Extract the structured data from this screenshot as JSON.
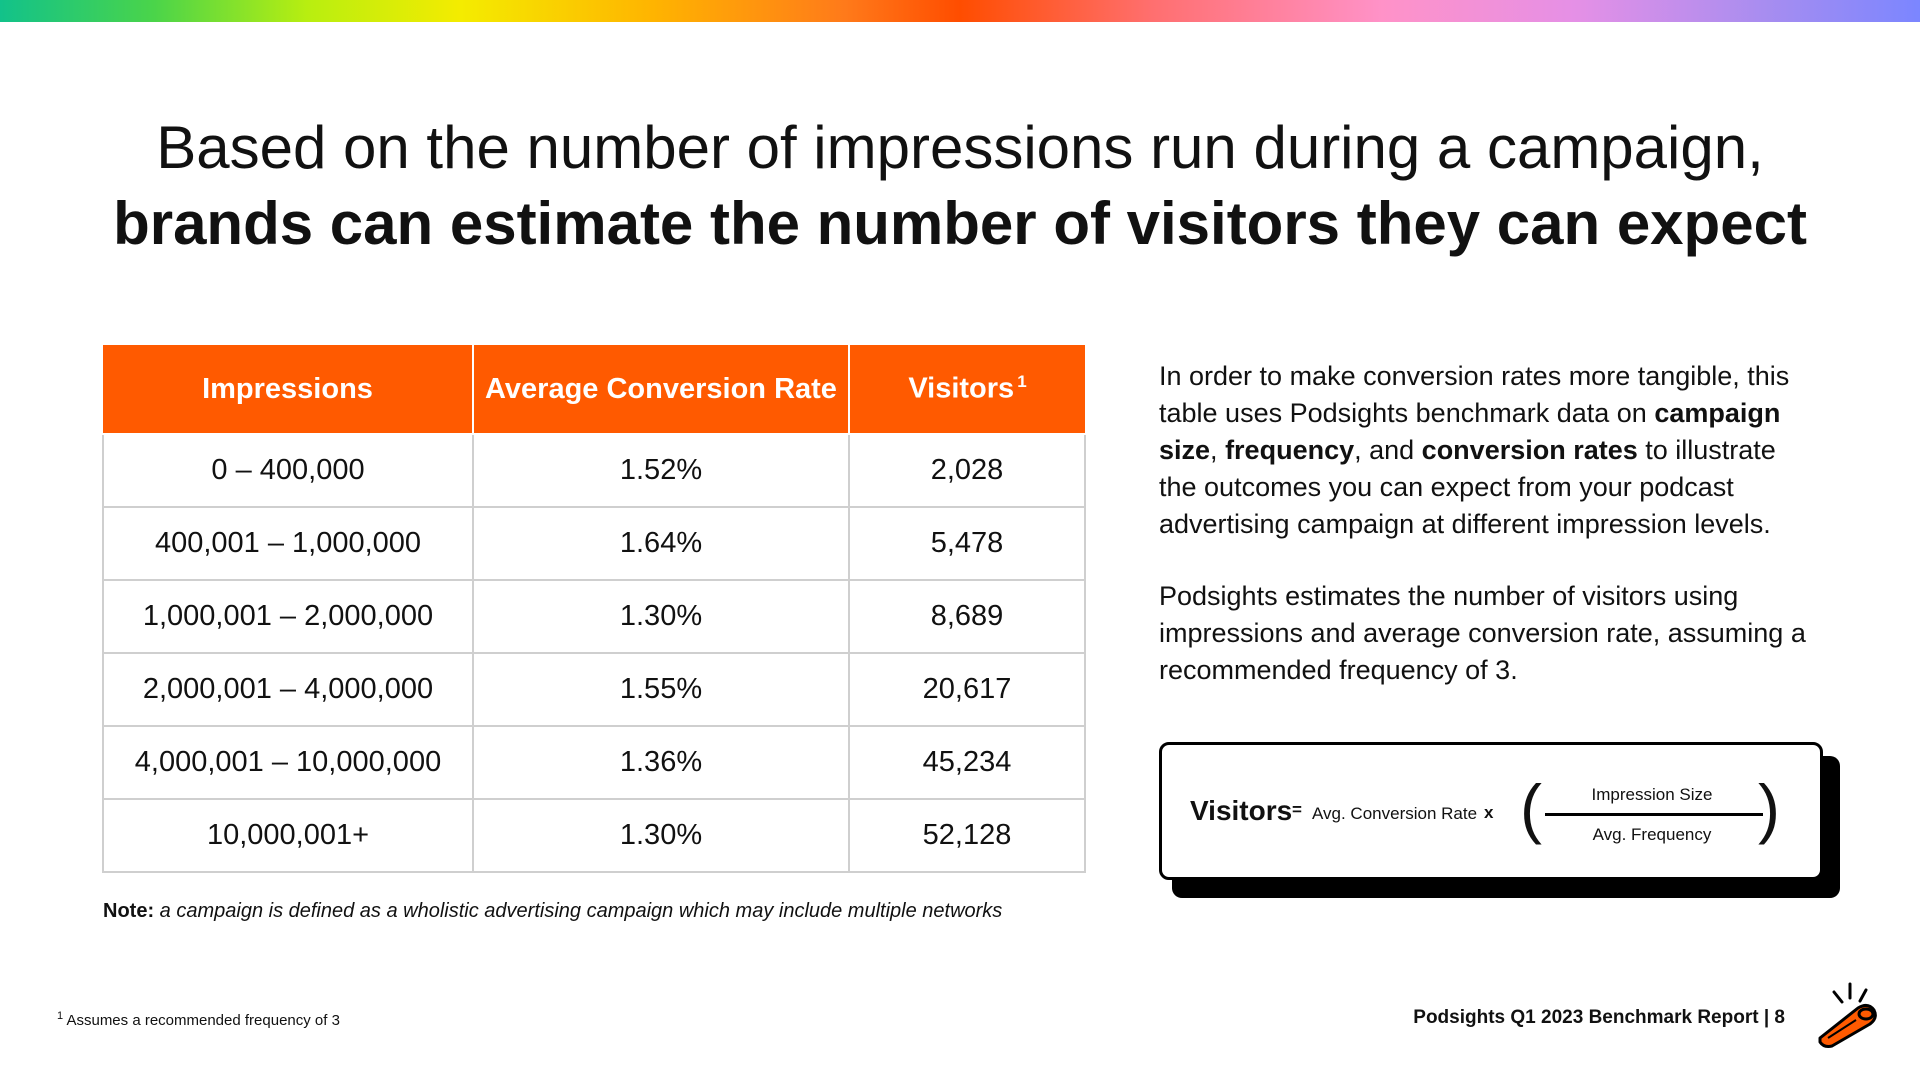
{
  "headline": {
    "line1": "Based on the number of impressions run during a campaign,",
    "line2": "brands can estimate the number of visitors they can expect"
  },
  "table": {
    "headers": [
      "Impressions",
      "Average Conversion Rate",
      "Visitors"
    ],
    "visitors_footnote_mark": "1",
    "rows": [
      [
        "0 – 400,000",
        "1.52%",
        "2,028"
      ],
      [
        "400,001 – 1,000,000",
        "1.64%",
        "5,478"
      ],
      [
        "1,000,001 – 2,000,000",
        "1.30%",
        "8,689"
      ],
      [
        "2,000,001 – 4,000,000",
        "1.55%",
        "20,617"
      ],
      [
        "4,000,001 – 10,000,000",
        "1.36%",
        "45,234"
      ],
      [
        "10,000,001+",
        "1.30%",
        "52,128"
      ]
    ]
  },
  "note": {
    "label": "Note:",
    "text": "a campaign is defined as a wholistic advertising campaign which may include multiple networks"
  },
  "description": {
    "p1_a": "In order to make conversion rates more tangible, this table uses Podsights benchmark data on ",
    "p1_b": "campaign size",
    "p1_c": ", ",
    "p1_d": "frequency",
    "p1_e": ", and ",
    "p1_f": "conversion rates",
    "p1_g": " to illustrate the outcomes you can expect from your podcast advertising campaign at different impression levels.",
    "p2": "Podsights estimates the number of visitors using impressions and average conversion rate, assuming a recommended frequency of 3."
  },
  "formula": {
    "visitors": "Visitors",
    "equals": "=",
    "rate": "Avg. Conversion Rate",
    "times": "x",
    "paren_left": "(",
    "paren_right": ")",
    "numerator": "Impression Size",
    "denominator": "Avg. Frequency"
  },
  "footer": {
    "footnote_mark": "1",
    "footnote_text": "Assumes a recommended frequency of 3",
    "report_label": "Podsights Q1 2023 Benchmark Report | 8"
  },
  "colors": {
    "accent": "#ff5a00",
    "text": "#111111",
    "grid": "#cfcfcf"
  },
  "icons": {
    "logo": "podsights-whistle-logo"
  }
}
